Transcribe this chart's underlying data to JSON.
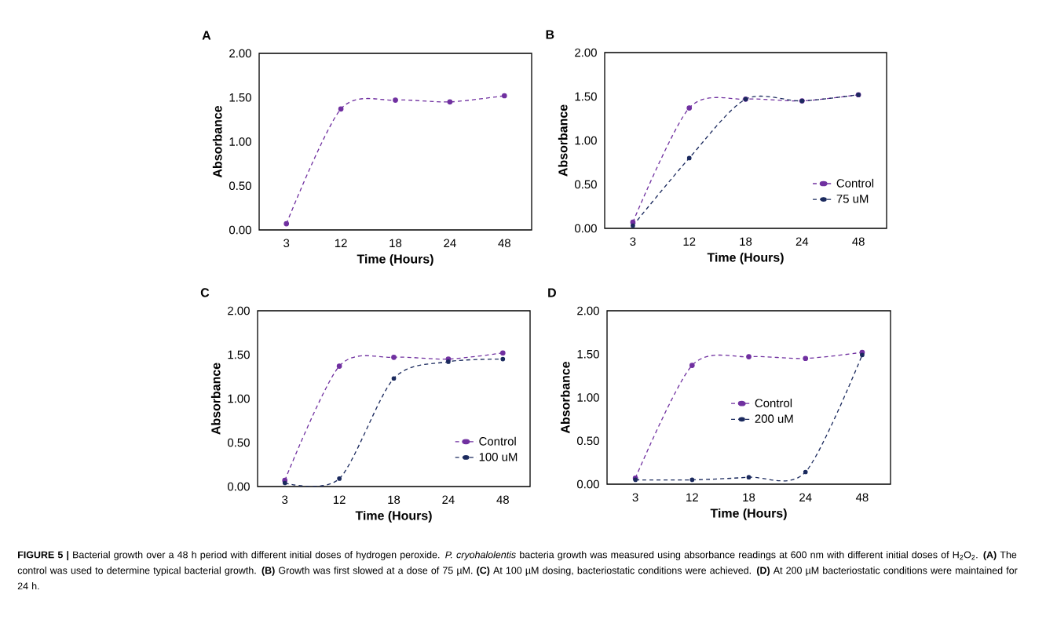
{
  "chart_data": [
    {
      "type": "line",
      "title": "A",
      "xlabel": "Time (Hours)",
      "ylabel": "Absorbance",
      "categories": [
        "3",
        "12",
        "18",
        "24",
        "48"
      ],
      "series": [
        {
          "color": "#7030a0",
          "values": [
            0.07,
            1.37,
            1.47,
            1.45,
            1.52
          ]
        }
      ],
      "ylim": [
        0,
        2
      ],
      "yticks": [
        {
          "value": 0,
          "label": "0.00"
        },
        {
          "value": 0.5,
          "label": "0.50"
        },
        {
          "value": 1,
          "label": "1.00"
        },
        {
          "value": 1.5,
          "label": "1.50"
        },
        {
          "value": 2,
          "label": "2.00"
        }
      ],
      "marker": "circle",
      "line_style": "dashed",
      "legend": false,
      "annotations": [
        "**FIGURE 5 |** Bacterial growth over a 48 h period with different initial doses of hydrogen peroxide. *P. cryohalolentis* bacteria growth was measured using absorbance readings at 600 nm with different initial doses of H$_{2}$O$_{2}$. **(A)** The control was used to determine typical bacterial growth. **(B)** Growth was first slowed at a dose of 75 µM. **(C)** At 100 µM dosing, bacteriostatic conditions were achieved. **(D)** At 200 µM bacteriostatic conditions were maintained for 24 h."
      ]
    },
    {
      "type": "line",
      "title": "B",
      "xlabel": "Time (Hours)",
      "ylabel": "Absorbance",
      "categories": [
        "3",
        "12",
        "18",
        "24",
        "48"
      ],
      "series": [
        {
          "name": "Control",
          "color": "#7030a0",
          "values": [
            0.07,
            1.37,
            1.47,
            1.45,
            1.52
          ]
        },
        {
          "name": "75 uM",
          "color": "#1b2a5e",
          "values": [
            0.03,
            0.8,
            1.47,
            1.45,
            1.52
          ]
        }
      ],
      "ylim": [
        0,
        2
      ],
      "yticks": [
        {
          "value": 0,
          "label": "0.00"
        },
        {
          "value": 0.5,
          "label": "0.50"
        },
        {
          "value": 1,
          "label": "1.00"
        },
        {
          "value": 1.5,
          "label": "1.50"
        },
        {
          "value": 2,
          "label": "2.00"
        }
      ],
      "marker": "circle",
      "line_style": "dashed",
      "legend": "bottom right"
    },
    {
      "type": "line",
      "title": "C",
      "xlabel": "Time (Hours)",
      "ylabel": "Absorbance",
      "categories": [
        "3",
        "12",
        "18",
        "24",
        "48"
      ],
      "series": [
        {
          "name": "Control",
          "color": "#7030a0",
          "values": [
            0.07,
            1.37,
            1.47,
            1.45,
            1.52
          ]
        },
        {
          "name": "100 uM",
          "color": "#1b2a5e",
          "values": [
            0.04,
            0.09,
            1.23,
            1.42,
            1.45
          ]
        }
      ],
      "ylim": [
        0,
        2
      ],
      "yticks": [
        {
          "value": 0,
          "label": "0.00"
        },
        {
          "value": 0.5,
          "label": "0.50"
        },
        {
          "value": 1,
          "label": "1.00"
        },
        {
          "value": 1.5,
          "label": "1.50"
        },
        {
          "value": 2,
          "label": "2.00"
        }
      ],
      "marker": "circle",
      "line_style": "dashed",
      "legend": "bottom right"
    },
    {
      "type": "line",
      "title": "D",
      "xlabel": "Time (Hours)",
      "ylabel": "Absorbance",
      "categories": [
        "3",
        "12",
        "18",
        "24",
        "48"
      ],
      "series": [
        {
          "name": "Control",
          "color": "#7030a0",
          "values": [
            0.07,
            1.37,
            1.47,
            1.45,
            1.52
          ]
        },
        {
          "name": "200 uM",
          "color": "#1b2a5e",
          "values": [
            0.05,
            0.05,
            0.08,
            0.14,
            1.49
          ]
        }
      ],
      "ylim": [
        0,
        2
      ],
      "yticks": [
        {
          "value": 0,
          "label": "0.00"
        },
        {
          "value": 0.5,
          "label": "0.50"
        },
        {
          "value": 1,
          "label": "1.00"
        },
        {
          "value": 1.5,
          "label": "1.50"
        },
        {
          "value": 2,
          "label": "2.00"
        }
      ],
      "marker": "circle",
      "line_style": "dashed",
      "legend": "center"
    }
  ]
}
